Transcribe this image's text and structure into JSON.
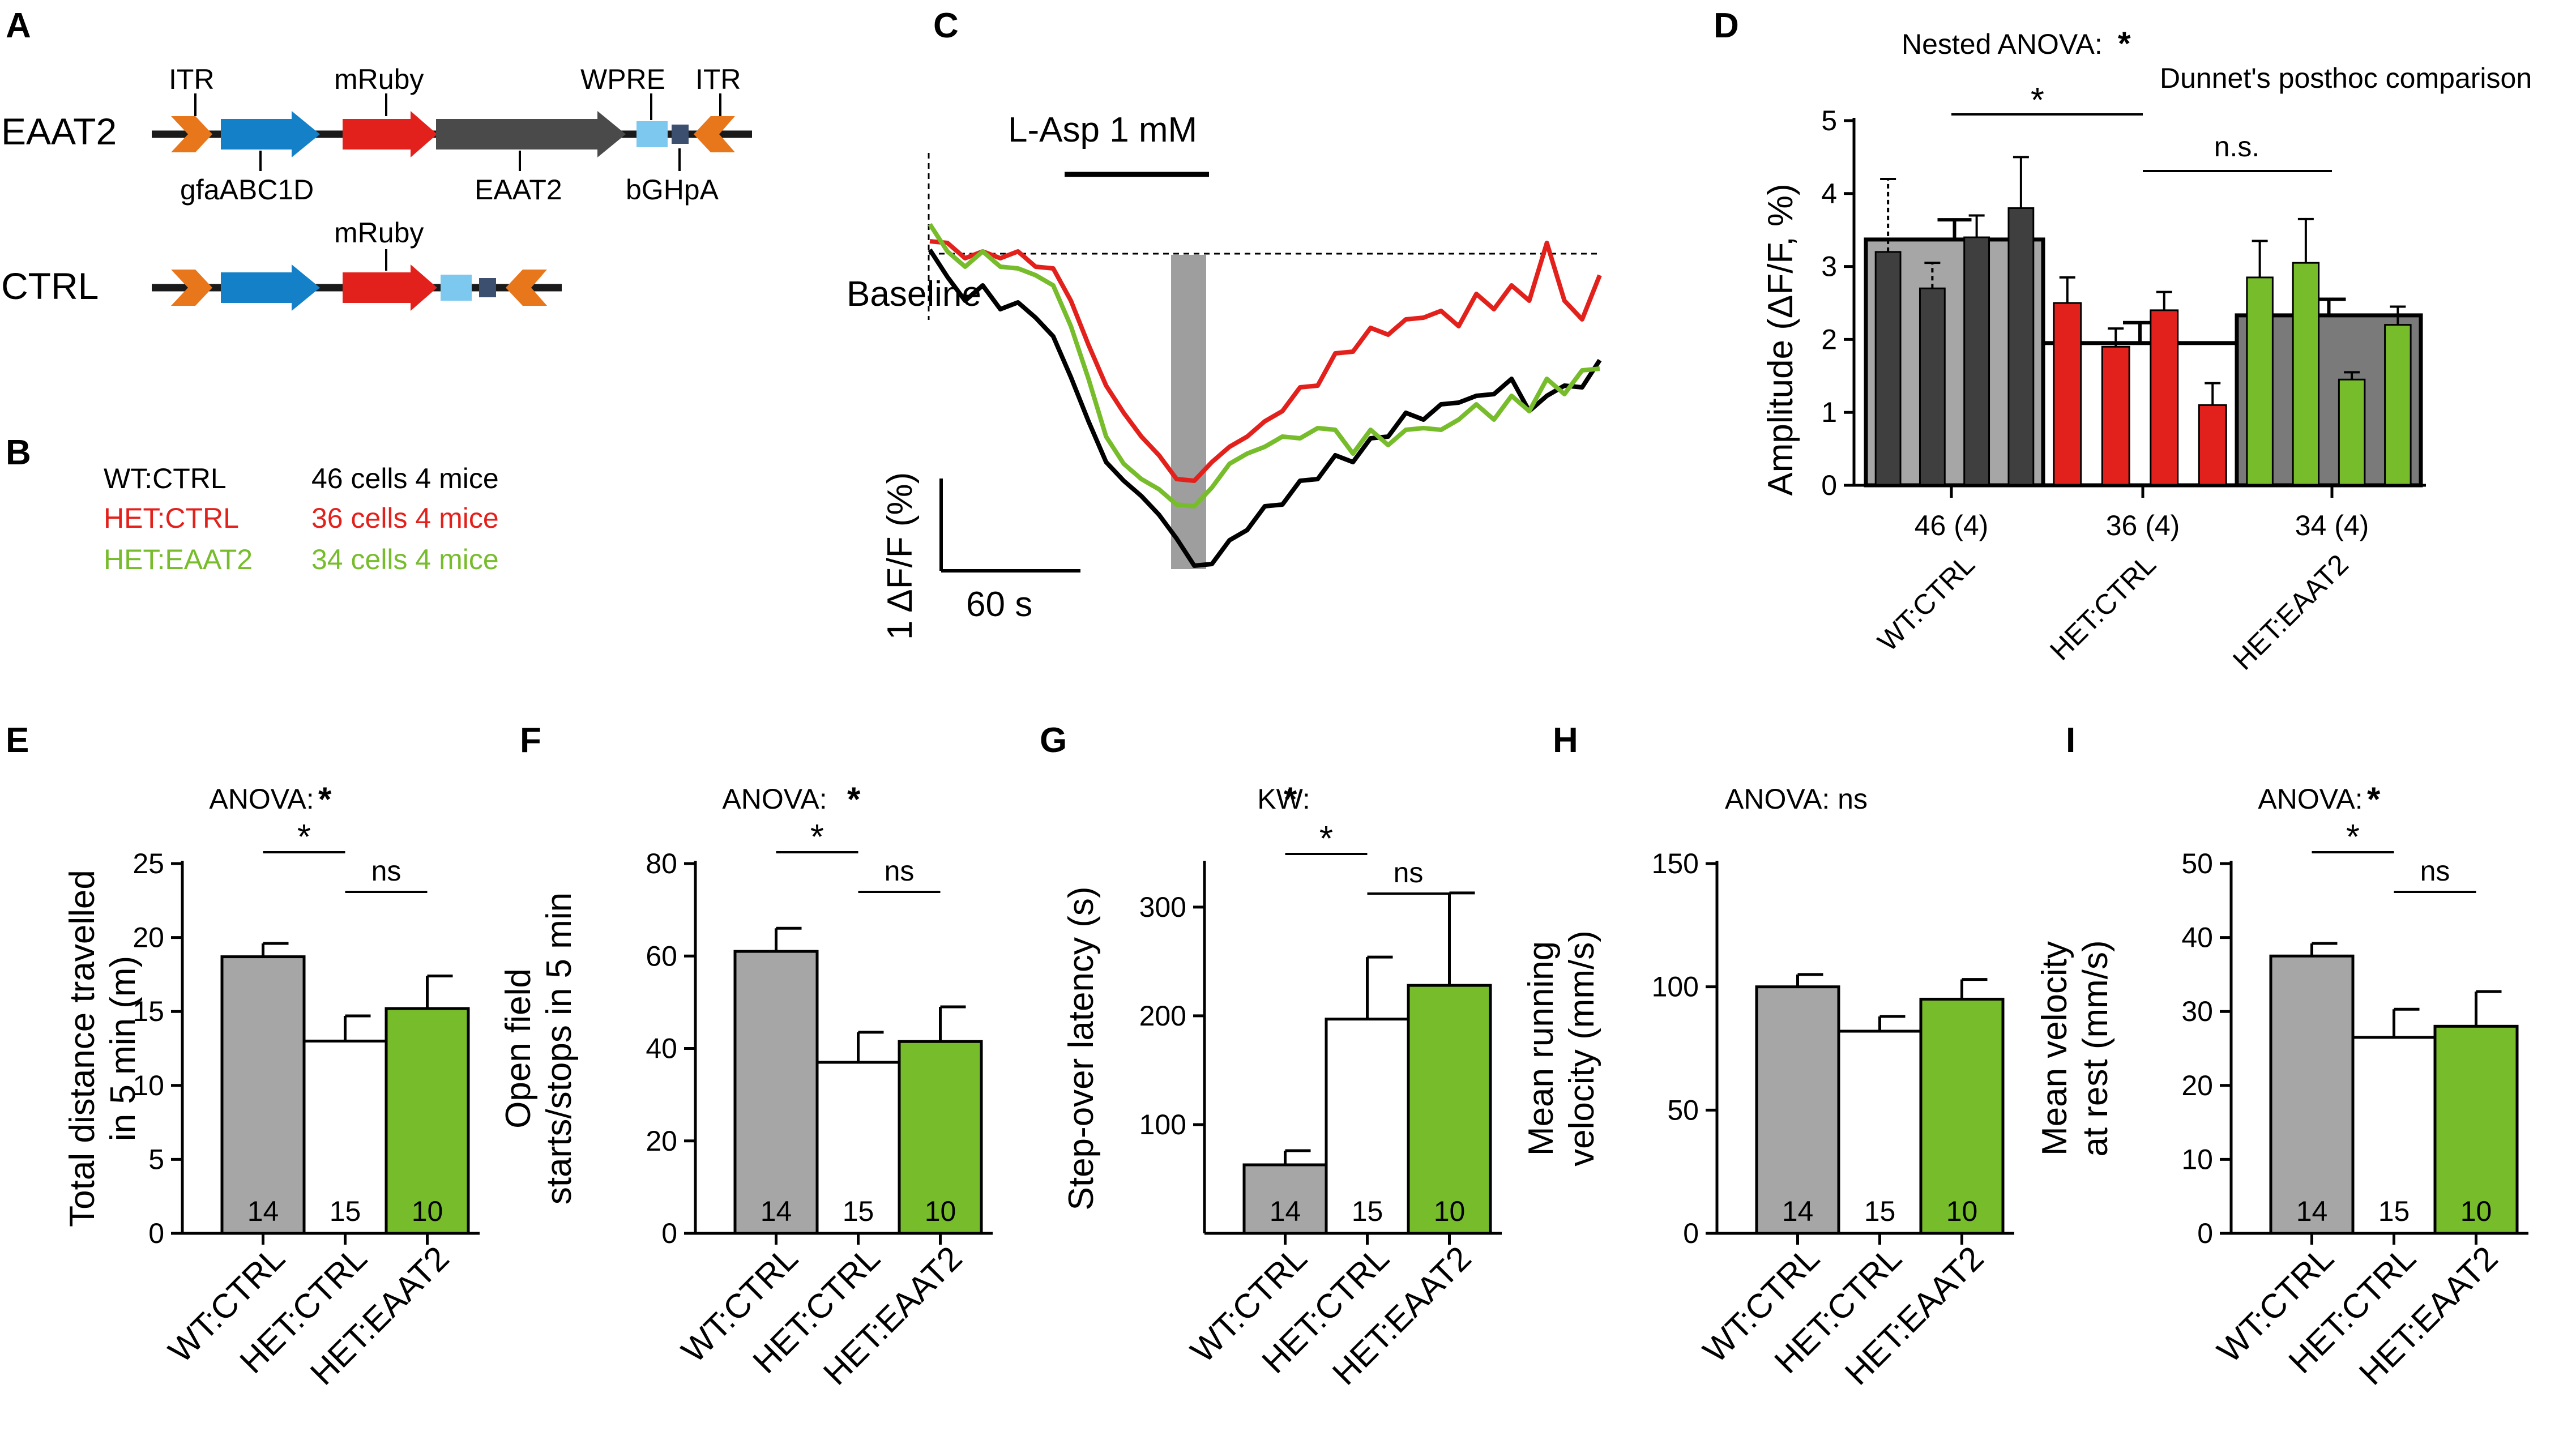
{
  "colors": {
    "black": "#000000",
    "gray_bar": "#a6a6a6",
    "gray_dark": "#3f3f3f",
    "gray_mid": "#7a7a7a",
    "red": "#e3211c",
    "green": "#77bc2b",
    "orange": "#e8761b",
    "blue": "#1380c7",
    "lightblue": "#7cc8ee",
    "navy": "#3c4f6e",
    "construct_dark": "#4a4a4a",
    "shade": "#9e9e9e"
  },
  "panel_letters": [
    "A",
    "B",
    "C",
    "D",
    "E",
    "F",
    "G",
    "H",
    "I"
  ],
  "panel_a": {
    "eaat2_label": "EAAT2",
    "ctrl_label": "CTRL",
    "itr_left": "ITR",
    "mruby": "mRuby",
    "wpre": "WPRE",
    "itr_right": "ITR",
    "gfaabc1d": "gfaABC1D",
    "eaat2_gene": "EAAT2",
    "bghpa": "bGHpA",
    "ctrl_mruby": "mRuby"
  },
  "panel_b": {
    "rows": [
      {
        "group": "WT:CTRL",
        "n": "46 cells 4 mice",
        "color": "#000000"
      },
      {
        "group": "HET:CTRL",
        "n": "36 cells 4 mice",
        "color": "#e3211c"
      },
      {
        "group": "HET:EAAT2",
        "n": "34 cells 4 mice",
        "color": "#77bc2b"
      }
    ]
  },
  "panel_c": {
    "title": "L-Asp 1 mM",
    "baseline": "Baseline",
    "scale_y": "1 ΔF/F (%)",
    "scale_x": "60 s"
  },
  "panel_d": {
    "nested": "Nested ANOVA:",
    "star": "*",
    "dunnet": "Dunnet's posthoc comparison",
    "sig_star": "*",
    "ns": "n.s.",
    "ylabel": "Amplitude (ΔF/F, %)",
    "yticks": [
      "0",
      "1",
      "2",
      "3",
      "4",
      "5"
    ],
    "n_labels": [
      "46 (4)",
      "36 (4)",
      "34 (4)"
    ],
    "groups": [
      "WT:CTRL",
      "HET:CTRL",
      "HET:EAAT2"
    ]
  },
  "chart_data": [
    {
      "type": "line",
      "panel": "C",
      "title": "L-Asp 1 mM",
      "xlabel": "",
      "ylabel": "",
      "series": [
        {
          "name": "WT:CTRL",
          "color": "#000000",
          "values": [
            0.0,
            -0.4,
            -0.6,
            -0.5,
            -0.7,
            -0.7,
            -0.8,
            -1.1,
            -1.5,
            -2.1,
            -2.5,
            -2.8,
            -2.9,
            -3.2,
            -3.4,
            -3.8,
            -3.7,
            -3.5,
            -3.3,
            -3.1,
            -3.0,
            -2.8,
            -2.7,
            -2.5,
            -2.5,
            -2.3,
            -2.2,
            -2.0,
            -2.0,
            -1.9,
            -1.8,
            -1.8,
            -1.7,
            -1.6,
            -1.9,
            -1.8,
            -1.6,
            -1.7,
            -1.3
          ]
        },
        {
          "name": "HET:CTRL",
          "color": "#e3211c",
          "values": [
            0.1,
            0.0,
            -0.1,
            -0.1,
            -0.1,
            -0.1,
            -0.2,
            -0.3,
            -0.6,
            -1.2,
            -1.6,
            -2.0,
            -2.2,
            -2.5,
            -2.7,
            -2.8,
            -2.5,
            -2.4,
            -2.2,
            -2.1,
            -1.9,
            -1.7,
            -1.6,
            -1.3,
            -1.2,
            -1.0,
            -1.0,
            -0.9,
            -0.8,
            -0.8,
            -0.9,
            -0.6,
            -0.7,
            -0.5,
            -0.6,
            0.0,
            -0.6,
            -0.9,
            -0.3
          ]
        },
        {
          "name": "HET:EAAT2",
          "color": "#77bc2b",
          "values": [
            0.3,
            -0.1,
            -0.2,
            -0.1,
            -0.2,
            -0.3,
            -0.3,
            -0.5,
            -0.9,
            -1.6,
            -2.2,
            -2.6,
            -2.7,
            -2.9,
            -3.0,
            -3.1,
            -2.8,
            -2.6,
            -2.4,
            -2.4,
            -2.2,
            -2.3,
            -2.1,
            -2.2,
            -2.4,
            -2.2,
            -2.3,
            -2.2,
            -2.1,
            -2.2,
            -2.0,
            -1.9,
            -2.0,
            -1.8,
            -1.9,
            -1.6,
            -1.7,
            -1.5,
            -1.4
          ]
        }
      ],
      "stimulus_bar": "L-Asp 1 mM"
    },
    {
      "type": "bar",
      "panel": "D",
      "ylabel": "Amplitude (ΔF/F, %)",
      "ylim": [
        0,
        5
      ],
      "categories": [
        "WT:CTRL",
        "HET:CTRL",
        "HET:EAAT2"
      ],
      "group_means": [
        3.37,
        1.95,
        2.33
      ],
      "group_mean_errors": [
        0.27,
        0.28,
        0.22
      ],
      "per_mouse": [
        [
          3.2,
          2.7,
          3.4,
          3.8
        ],
        [
          2.5,
          1.9,
          2.4,
          1.1
        ],
        [
          2.85,
          3.05,
          1.45,
          2.2
        ]
      ],
      "per_mouse_errors": [
        [
          1.0,
          0.35,
          0.3,
          0.7
        ],
        [
          0.35,
          0.25,
          0.25,
          0.3
        ],
        [
          0.5,
          0.6,
          0.1,
          0.25
        ]
      ],
      "n_labels": [
        "46 (4)",
        "36 (4)",
        "34 (4)"
      ]
    },
    {
      "type": "bar",
      "panel": "E",
      "test": "ANOVA:",
      "star": "*",
      "sig_star": "*",
      "ns": "ns",
      "ylabel": [
        "Total distance travelled",
        "in 5 min (m)"
      ],
      "categories": [
        "WT:CTRL",
        "HET:CTRL",
        "HET:EAAT2"
      ],
      "values": [
        18.7,
        13.0,
        15.2
      ],
      "errors": [
        0.9,
        1.7,
        2.2
      ],
      "n": [
        "14",
        "15",
        "10"
      ],
      "ylim": [
        0,
        25
      ],
      "yticks": [
        "0",
        "5",
        "10",
        "15",
        "20",
        "25"
      ]
    },
    {
      "type": "bar",
      "panel": "F",
      "test": "ANOVA:",
      "star": "*",
      "sig_star": "*",
      "ns": "ns",
      "ylabel": [
        "Open field",
        "starts/stops in 5 min"
      ],
      "categories": [
        "WT:CTRL",
        "HET:CTRL",
        "HET:EAAT2"
      ],
      "values": [
        61,
        37,
        41.5
      ],
      "errors": [
        5,
        6.5,
        7.5
      ],
      "n": [
        "14",
        "15",
        "10"
      ],
      "ylim": [
        0,
        80
      ],
      "yticks": [
        "0",
        "20",
        "40",
        "60",
        "80"
      ]
    },
    {
      "type": "bar",
      "panel": "G",
      "test": "KW:",
      "star": "*",
      "sig_star": "*",
      "ns": "ns",
      "ylabel": [
        "Step-over latency (s)"
      ],
      "categories": [
        "WT:CTRL",
        "HET:CTRL",
        "HET:EAAT2"
      ],
      "values": [
        63,
        197,
        228
      ],
      "errors": [
        13,
        57,
        85
      ],
      "n": [
        "14",
        "15",
        "10"
      ],
      "ylim": [
        0,
        340
      ],
      "yticks": [
        "100",
        "200",
        "300"
      ]
    },
    {
      "type": "bar",
      "panel": "H",
      "test": "ANOVA: ns",
      "ylabel": [
        "Mean running",
        "velocity (mm/s)"
      ],
      "categories": [
        "WT:CTRL",
        "HET:CTRL",
        "HET:EAAT2"
      ],
      "values": [
        100,
        82,
        95
      ],
      "errors": [
        5,
        6,
        8
      ],
      "n": [
        "14",
        "15",
        "10"
      ],
      "ylim": [
        0,
        150
      ],
      "yticks": [
        "0",
        "50",
        "100",
        "150"
      ]
    },
    {
      "type": "bar",
      "panel": "I",
      "test": "ANOVA:",
      "star": "*",
      "sig_star": "*",
      "ns": "ns",
      "ylabel": [
        "Mean velocity",
        "at rest (mm/s)"
      ],
      "categories": [
        "WT:CTRL",
        "HET:CTRL",
        "HET:EAAT2"
      ],
      "values": [
        37.5,
        26.5,
        28
      ],
      "errors": [
        1.7,
        3.8,
        4.7
      ],
      "n": [
        "14",
        "15",
        "10"
      ],
      "ylim": [
        0,
        50
      ],
      "yticks": [
        "0",
        "10",
        "20",
        "30",
        "40",
        "50"
      ]
    }
  ]
}
